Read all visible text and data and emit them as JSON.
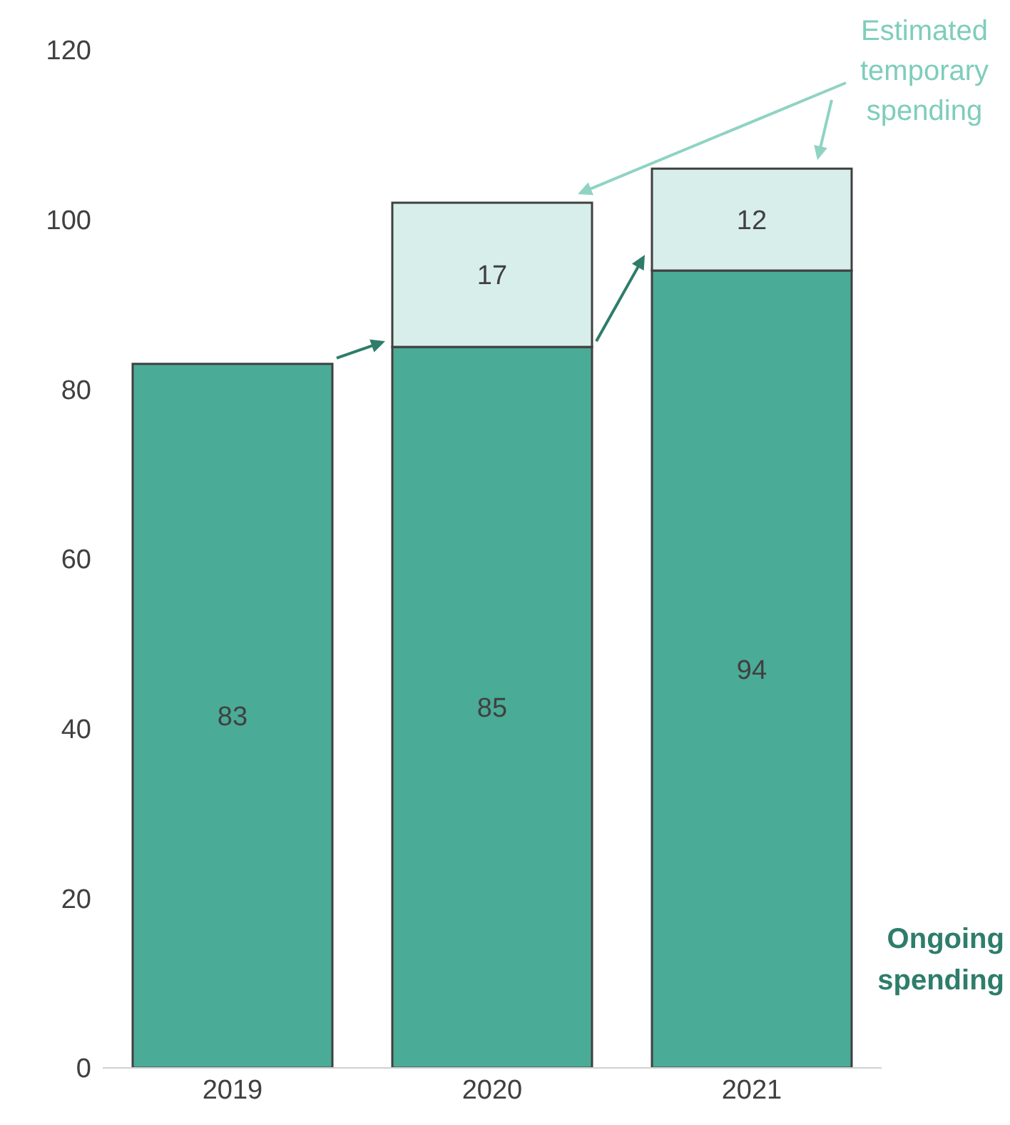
{
  "chart_data": {
    "type": "bar",
    "stacked": true,
    "categories": [
      "2019",
      "2020",
      "2021"
    ],
    "series": [
      {
        "name": "Ongoing spending",
        "color": "#4aab97",
        "values": [
          83,
          85,
          94
        ]
      },
      {
        "name": "Estimated temporary spending",
        "color": "#d8eeea",
        "values": [
          null,
          17,
          12
        ]
      }
    ],
    "ylim": [
      0,
      120
    ],
    "yticks": [
      0,
      20,
      40,
      60,
      80,
      100,
      120
    ],
    "grid": false,
    "legend": false,
    "data_labels": true
  }
}
